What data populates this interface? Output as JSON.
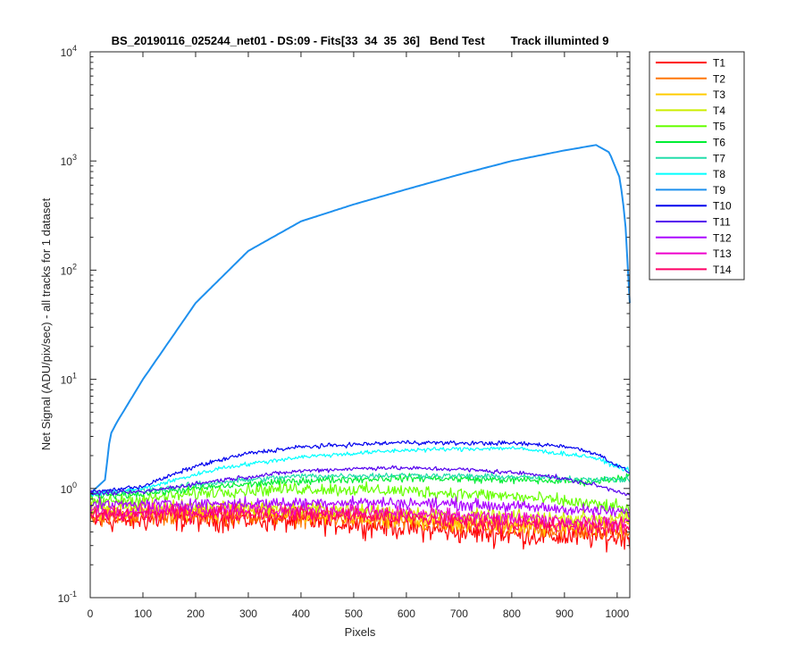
{
  "chart_data": {
    "type": "line",
    "title": "BS_20190116_025244_net01 - DS:09 - Fits[33  34  35  36]   Bend Test        Track illuminted 9",
    "xlabel": "Pixels",
    "ylabel": "Net Signal (ADU/pix/sec) - all tracks for 1 dataset",
    "xlim": [
      0,
      1024
    ],
    "ylim": [
      0.1,
      10000
    ],
    "yscale": "log",
    "grid": false,
    "legend_position": "outside-right",
    "x_ticks": [
      "0",
      "100",
      "200",
      "300",
      "400",
      "500",
      "600",
      "700",
      "800",
      "900",
      "1000"
    ],
    "y_ticks": [
      {
        "base": "10",
        "exp": "-1"
      },
      {
        "base": "10",
        "exp": "0"
      },
      {
        "base": "10",
        "exp": "1"
      },
      {
        "base": "10",
        "exp": "2"
      },
      {
        "base": "10",
        "exp": "3"
      },
      {
        "base": "10",
        "exp": "4"
      }
    ],
    "series": [
      {
        "name": "T1",
        "color": "#ff0000",
        "noise": 0.16,
        "points": [
          [
            0,
            0.5
          ],
          [
            150,
            0.52
          ],
          [
            300,
            0.52
          ],
          [
            500,
            0.48
          ],
          [
            700,
            0.4
          ],
          [
            900,
            0.36
          ],
          [
            1024,
            0.36
          ]
        ]
      },
      {
        "name": "T2",
        "color": "#ff7700",
        "noise": 0.13,
        "points": [
          [
            0,
            0.55
          ],
          [
            150,
            0.57
          ],
          [
            300,
            0.57
          ],
          [
            500,
            0.53
          ],
          [
            700,
            0.45
          ],
          [
            900,
            0.41
          ],
          [
            1024,
            0.41
          ]
        ]
      },
      {
        "name": "T3",
        "color": "#ffcc00",
        "noise": 0.12,
        "points": [
          [
            0,
            0.6
          ],
          [
            150,
            0.62
          ],
          [
            300,
            0.61
          ],
          [
            500,
            0.57
          ],
          [
            700,
            0.49
          ],
          [
            900,
            0.46
          ],
          [
            1024,
            0.47
          ]
        ]
      },
      {
        "name": "T4",
        "color": "#ccee00",
        "noise": 0.1,
        "points": [
          [
            0,
            0.66
          ],
          [
            150,
            0.68
          ],
          [
            300,
            0.67
          ],
          [
            500,
            0.63
          ],
          [
            700,
            0.56
          ],
          [
            900,
            0.53
          ],
          [
            1024,
            0.55
          ]
        ]
      },
      {
        "name": "T5",
        "color": "#66ff00",
        "noise": 0.09,
        "points": [
          [
            0,
            0.75
          ],
          [
            100,
            0.8
          ],
          [
            250,
            0.95
          ],
          [
            400,
            1.0
          ],
          [
            600,
            0.95
          ],
          [
            800,
            0.85
          ],
          [
            950,
            0.72
          ],
          [
            1024,
            0.65
          ]
        ]
      },
      {
        "name": "T6",
        "color": "#00ee33",
        "noise": 0.05,
        "points": [
          [
            0,
            0.85
          ],
          [
            100,
            0.9
          ],
          [
            250,
            1.05
          ],
          [
            400,
            1.18
          ],
          [
            600,
            1.25
          ],
          [
            800,
            1.2
          ],
          [
            950,
            1.15
          ],
          [
            1024,
            1.3
          ]
        ]
      },
      {
        "name": "T7",
        "color": "#22ddaa",
        "noise": 0.04,
        "points": [
          [
            0,
            0.9
          ],
          [
            100,
            0.95
          ],
          [
            250,
            1.15
          ],
          [
            400,
            1.3
          ],
          [
            600,
            1.32
          ],
          [
            800,
            1.28
          ],
          [
            950,
            1.22
          ],
          [
            1024,
            1.2
          ]
        ]
      },
      {
        "name": "T8",
        "color": "#00ffff",
        "noise": 0.03,
        "points": [
          [
            0,
            0.88
          ],
          [
            100,
            1.0
          ],
          [
            250,
            1.55
          ],
          [
            400,
            1.95
          ],
          [
            600,
            2.25
          ],
          [
            800,
            2.35
          ],
          [
            950,
            1.95
          ],
          [
            1024,
            1.45
          ]
        ]
      },
      {
        "name": "T9",
        "color": "#1e90ee",
        "noise": 0.0,
        "points": [
          [
            0,
            0.9
          ],
          [
            28,
            1.2
          ],
          [
            38,
            3.1
          ],
          [
            50,
            4.0
          ],
          [
            100,
            10
          ],
          [
            200,
            50
          ],
          [
            300,
            150
          ],
          [
            400,
            280
          ],
          [
            500,
            400
          ],
          [
            600,
            550
          ],
          [
            700,
            750
          ],
          [
            800,
            1000
          ],
          [
            900,
            1250
          ],
          [
            960,
            1400
          ],
          [
            985,
            1200
          ],
          [
            1005,
            700
          ],
          [
            1015,
            300
          ],
          [
            1024,
            50
          ]
        ]
      },
      {
        "name": "T10",
        "color": "#0000ee",
        "noise": 0.03,
        "points": [
          [
            0,
            0.92
          ],
          [
            100,
            1.05
          ],
          [
            200,
            1.6
          ],
          [
            300,
            2.1
          ],
          [
            400,
            2.4
          ],
          [
            600,
            2.65
          ],
          [
            700,
            2.6
          ],
          [
            800,
            2.6
          ],
          [
            900,
            2.45
          ],
          [
            960,
            2.1
          ],
          [
            1024,
            1.4
          ]
        ]
      },
      {
        "name": "T11",
        "color": "#5500ee",
        "noise": 0.03,
        "points": [
          [
            0,
            0.9
          ],
          [
            100,
            0.93
          ],
          [
            250,
            1.2
          ],
          [
            400,
            1.45
          ],
          [
            550,
            1.55
          ],
          [
            700,
            1.5
          ],
          [
            850,
            1.35
          ],
          [
            950,
            1.1
          ],
          [
            1024,
            0.88
          ]
        ]
      },
      {
        "name": "T12",
        "color": "#aa00ff",
        "noise": 0.08,
        "points": [
          [
            0,
            0.7
          ],
          [
            150,
            0.72
          ],
          [
            300,
            0.73
          ],
          [
            500,
            0.75
          ],
          [
            700,
            0.72
          ],
          [
            900,
            0.65
          ],
          [
            1024,
            0.6
          ]
        ]
      },
      {
        "name": "T13",
        "color": "#ee00cc",
        "noise": 0.1,
        "points": [
          [
            0,
            0.62
          ],
          [
            150,
            0.64
          ],
          [
            300,
            0.64
          ],
          [
            500,
            0.62
          ],
          [
            700,
            0.56
          ],
          [
            900,
            0.5
          ],
          [
            1024,
            0.48
          ]
        ]
      },
      {
        "name": "T14",
        "color": "#ff0066",
        "noise": 0.11,
        "points": [
          [
            0,
            0.56
          ],
          [
            150,
            0.59
          ],
          [
            300,
            0.59
          ],
          [
            500,
            0.57
          ],
          [
            700,
            0.5
          ],
          [
            900,
            0.45
          ],
          [
            1024,
            0.44
          ]
        ]
      }
    ]
  }
}
